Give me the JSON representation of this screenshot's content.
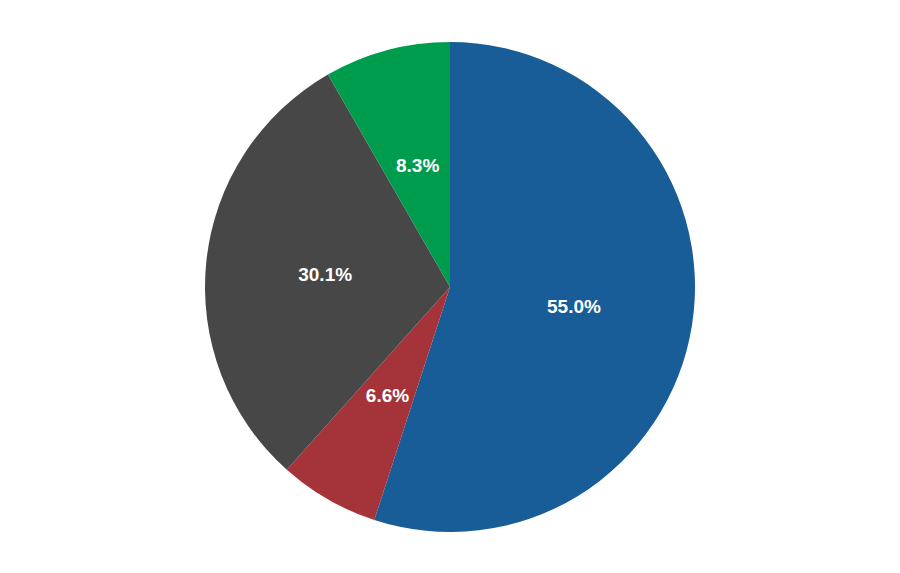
{
  "chart_data": {
    "type": "pie",
    "values": [
      55.0,
      6.6,
      30.1,
      8.3
    ],
    "value_labels": [
      "55.0%",
      "6.6%",
      "30.1%",
      "8.3%"
    ],
    "colors": [
      "#185d97",
      "#a4343a",
      "#474747",
      "#009c4d"
    ],
    "data_labels": true
  }
}
